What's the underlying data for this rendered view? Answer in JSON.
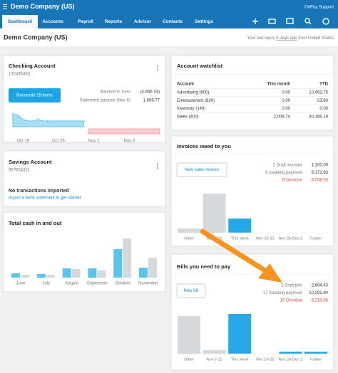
{
  "topbar": {
    "org": "Demo Company (US)",
    "user": "OnPay Support"
  },
  "nav": [
    "Dashboard",
    "Accounts",
    "Payroll",
    "Reports",
    "Advisor",
    "Contacts",
    "Settings"
  ],
  "header": {
    "title": "Demo Company (US)",
    "login_prefix": "Your last login:",
    "login_link": "5 days ago",
    "login_suffix": "from United States"
  },
  "checking": {
    "title": "Checking Account",
    "number": "132435465",
    "button": "Reconcile 29 items",
    "balance_label": "Balance in Xero",
    "balance": "(4,946.33)",
    "statement_label": "Statement balance (Nov 8)",
    "statement": "1,608.77",
    "chart": {
      "type": "area",
      "categories": [
        null,
        null,
        "Oct 19",
        null,
        null,
        null,
        null,
        null,
        null,
        "Oct 26",
        null,
        null,
        null,
        null,
        null,
        null,
        "Nov 2",
        null,
        null,
        null,
        null,
        null,
        null,
        "Nov 9",
        null,
        null,
        null,
        null,
        null,
        null
      ],
      "values": [
        9,
        8,
        5,
        4,
        4,
        5,
        4,
        4,
        4,
        4,
        4,
        4,
        4,
        4,
        4,
        -4,
        -4,
        -4,
        -4,
        -4,
        -4,
        -4,
        -4,
        -4,
        -4,
        -4,
        -4,
        -4,
        -4,
        -4
      ],
      "colors": [
        "#5bc3ee",
        "#f4a3a8"
      ]
    }
  },
  "savings": {
    "title": "Savings Account",
    "number": "987654321",
    "message": "No transactions imported",
    "link": "Import a bank statement to get started"
  },
  "cash": {
    "type": "bar",
    "title": "Total cash in and out",
    "categories": [
      "June",
      "July",
      "August",
      "September",
      "October",
      "November"
    ],
    "values": [
      [
        6,
        4
      ],
      [
        5,
        4
      ],
      [
        13,
        12
      ],
      [
        13,
        10
      ],
      [
        40,
        55
      ],
      [
        14,
        28
      ]
    ],
    "colors": [
      "#5bc3ee",
      "#d6d9dc"
    ]
  },
  "watchlist": {
    "title": "Account watchlist",
    "columns": [
      "Account",
      "This month",
      "YTD"
    ],
    "rows": [
      [
        "Advertising (600)",
        "0.00",
        "10,453.75"
      ],
      [
        "Entertainment (620)",
        "0.00",
        "53.60"
      ],
      [
        "Inventory (140)",
        "0.00",
        "0.00"
      ],
      [
        "Sales (400)",
        "2,008.74",
        "30,166.19"
      ]
    ]
  },
  "invoices": {
    "title": "Invoices owed to you",
    "button": "New sales invoice",
    "stats": [
      [
        "2 Draft invoices",
        "1,100.00"
      ],
      [
        "9 Awaiting payment",
        "9,172.63"
      ],
      [
        "8 Overdue",
        "8,038.63"
      ]
    ],
    "chart": {
      "type": "bar",
      "categories": [
        "Older",
        "Nov 5-11",
        "This week",
        "Nov 19-25",
        "Nov 26-Dec 2",
        "Future"
      ],
      "values": [
        6,
        55,
        20,
        0,
        0,
        0
      ],
      "colors": [
        "#d6d9dc",
        "#d6d9dc",
        "#29a8e8",
        "#29a8e8",
        "#29a8e8",
        "#29a8e8"
      ]
    }
  },
  "bills": {
    "title": "Bills you need to pay",
    "button": "New bill",
    "stats": [
      [
        "2 Draft bills",
        "2,694.43"
      ],
      [
        "17 Awaiting payment",
        "10,291.84"
      ],
      [
        "10 Overdue",
        "6,219.86"
      ]
    ],
    "chart": {
      "type": "bar",
      "categories": [
        "Older",
        "Nov 5-11",
        "This week",
        "Nov 19-25",
        "Nov 26-Dec 2",
        "Future"
      ],
      "values": [
        53,
        5,
        56,
        0,
        3,
        3
      ],
      "colors": [
        "#d6d9dc",
        "#d6d9dc",
        "#29a8e8",
        "#29a8e8",
        "#29a8e8",
        "#29a8e8"
      ]
    }
  }
}
